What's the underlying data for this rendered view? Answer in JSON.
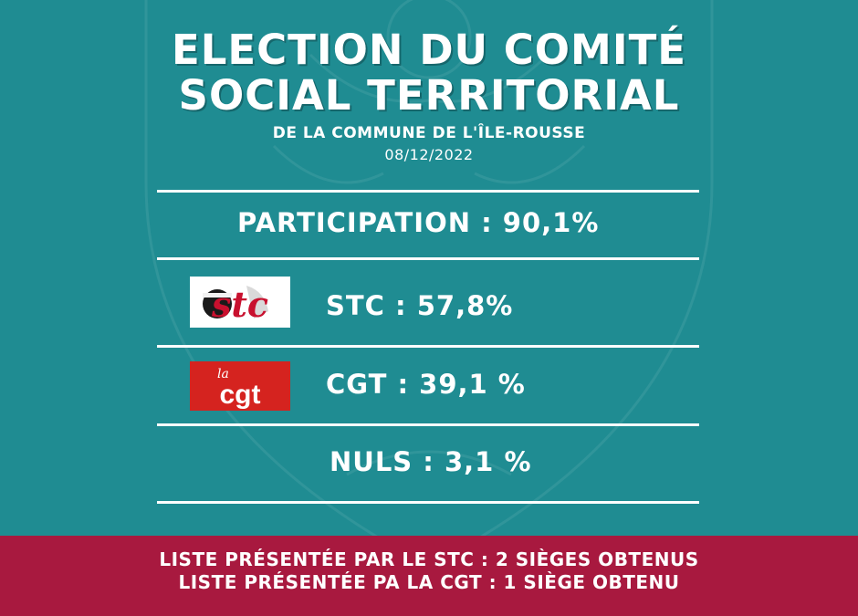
{
  "header": {
    "title_line1": "ELECTION DU COMITÉ",
    "title_line2": "SOCIAL TERRITORIAL",
    "subtitle": "DE LA COMMUNE DE L'ÎLE-ROUSSE",
    "date": "08/12/2022"
  },
  "results": {
    "participation": "PARTICIPATION : 90,1%",
    "stc": "STC : 57,8%",
    "cgt": "CGT : 39,1 %",
    "nuls": "NULS : 3,1 %"
  },
  "logos": {
    "stc": {
      "icon": "stc-union-logo",
      "text": "stc"
    },
    "cgt": {
      "icon": "cgt-union-logo",
      "small_text": "la",
      "text": "cgt"
    }
  },
  "footer": {
    "line1": "LISTE PRÉSENTÉE PAR LE STC : 2 SIÈGES OBTENUS",
    "line2": "LISTE PRÉSENTÉE PA LA CGT : 1 SIÈGE OBTENU"
  },
  "colors": {
    "background": "#1f8c92",
    "footer": "#a8193f",
    "text": "#ffffff",
    "cgt_red": "#d5231f"
  }
}
